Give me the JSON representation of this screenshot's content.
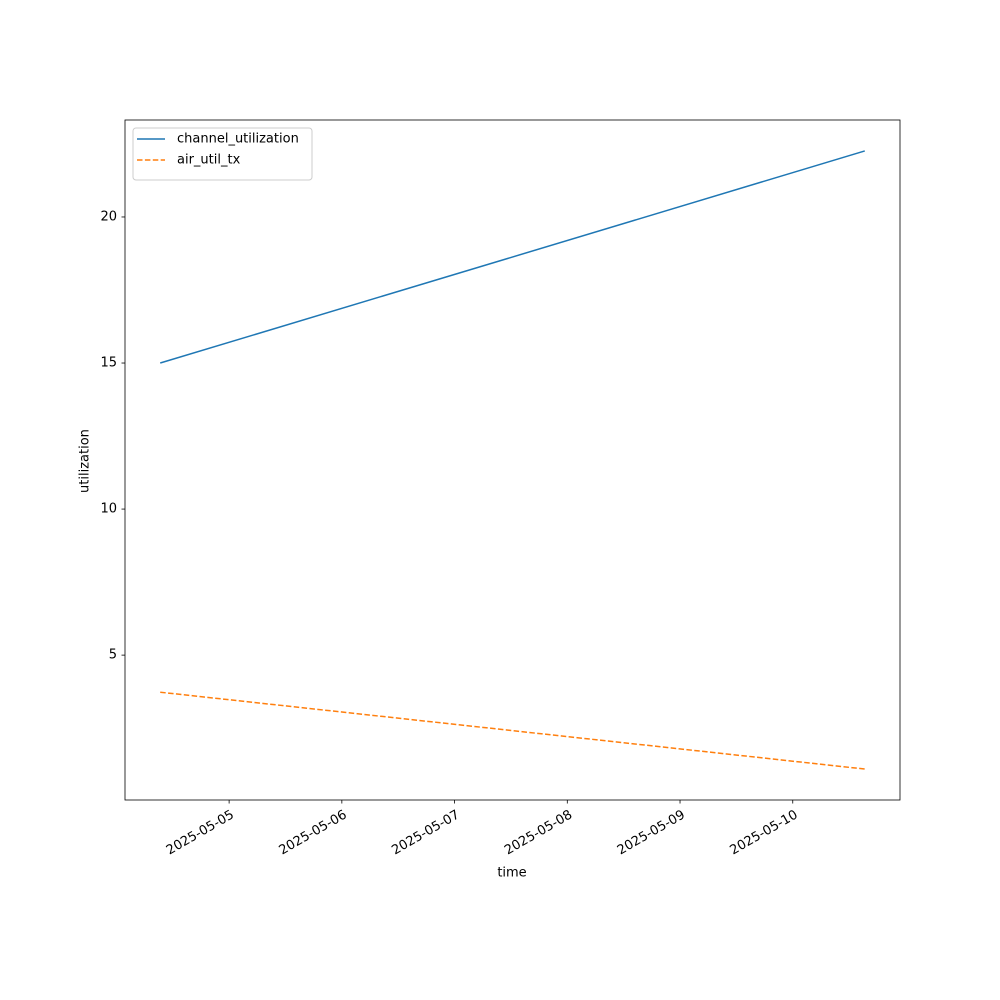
{
  "chart_data": {
    "type": "line",
    "x_label": "time",
    "y_label": "utilization",
    "x": [
      "2025-05-04 09:20",
      "2025-05-10 15:20"
    ],
    "series": [
      {
        "name": "channel_utilization",
        "color": "#1f77b4",
        "dash": false,
        "values": [
          15.0,
          22.26
        ]
      },
      {
        "name": "air_util_tx",
        "color": "#ff7f0e",
        "dash": true,
        "values": [
          3.73,
          1.1
        ]
      }
    ],
    "xlim": [
      "2025-05-04 01:50",
      "2025-05-10 22:50"
    ],
    "xticks": [
      "2025-05-05",
      "2025-05-06",
      "2025-05-07",
      "2025-05-08",
      "2025-05-09",
      "2025-05-10"
    ],
    "ylim": [
      0.04,
      23.32
    ],
    "yticks": [
      5,
      10,
      15,
      20
    ],
    "legend": "upper left"
  }
}
